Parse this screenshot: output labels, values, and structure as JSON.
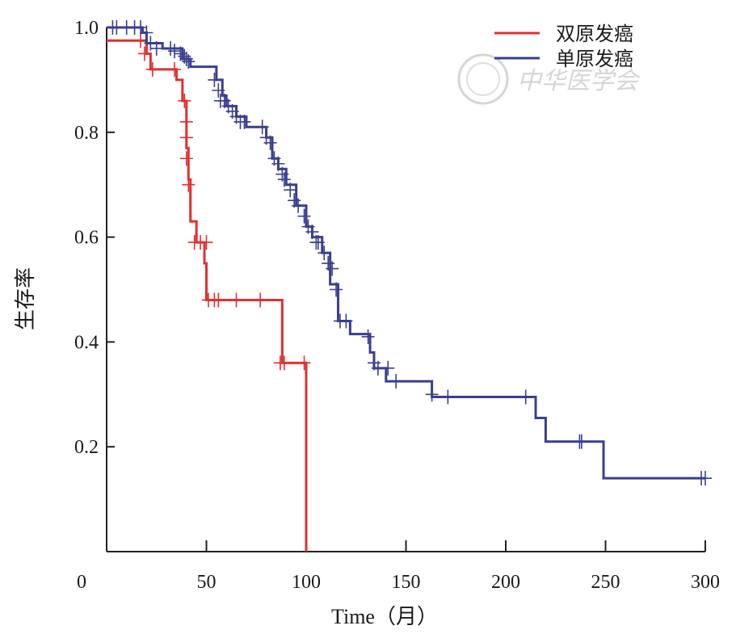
{
  "chart_data": {
    "type": "line",
    "subtype": "kaplan-meier",
    "xlabel": "Time（月）",
    "ylabel": "生存率",
    "xlim": [
      0,
      300
    ],
    "ylim": [
      0,
      1.0
    ],
    "x_origin_label": "0",
    "x_ticks": [
      50,
      100,
      150,
      200,
      250,
      300
    ],
    "y_ticks": [
      0.2,
      0.4,
      0.6,
      0.8,
      1.0
    ],
    "y_tick_labels": [
      "0.2",
      "0.4",
      "0.6",
      "0.8",
      "1.0"
    ],
    "legend_position": "top-right",
    "watermark": "中华医学会",
    "series": [
      {
        "name": "双原发癌",
        "color": "#e03030",
        "steps": [
          [
            0,
            0.975
          ],
          [
            20,
            0.95
          ],
          [
            22,
            0.92
          ],
          [
            35,
            0.9
          ],
          [
            38,
            0.86
          ],
          [
            40,
            0.77
          ],
          [
            41,
            0.71
          ],
          [
            42,
            0.63
          ],
          [
            45,
            0.59
          ],
          [
            49,
            0.55
          ],
          [
            50,
            0.48
          ],
          [
            88,
            0.36
          ],
          [
            100,
            0.0
          ]
        ],
        "end_x": 100,
        "censored": [
          [
            17,
            0.975
          ],
          [
            19,
            0.95
          ],
          [
            23,
            0.92
          ],
          [
            34,
            0.92
          ],
          [
            39,
            0.86
          ],
          [
            40,
            0.82
          ],
          [
            40,
            0.79
          ],
          [
            40,
            0.75
          ],
          [
            41,
            0.7
          ],
          [
            44,
            0.59
          ],
          [
            47,
            0.59
          ],
          [
            50,
            0.59
          ],
          [
            51,
            0.48
          ],
          [
            54,
            0.48
          ],
          [
            56,
            0.48
          ],
          [
            65,
            0.48
          ],
          [
            77,
            0.48
          ],
          [
            87,
            0.36
          ],
          [
            89,
            0.36
          ],
          [
            99,
            0.36
          ]
        ]
      },
      {
        "name": "单原发癌",
        "color": "#3a3f8f",
        "steps": [
          [
            0,
            1.0
          ],
          [
            18,
            0.99
          ],
          [
            20,
            0.97
          ],
          [
            28,
            0.96
          ],
          [
            38,
            0.94
          ],
          [
            42,
            0.925
          ],
          [
            55,
            0.9
          ],
          [
            58,
            0.87
          ],
          [
            60,
            0.85
          ],
          [
            65,
            0.83
          ],
          [
            70,
            0.81
          ],
          [
            80,
            0.79
          ],
          [
            83,
            0.75
          ],
          [
            86,
            0.73
          ],
          [
            90,
            0.7
          ],
          [
            95,
            0.66
          ],
          [
            100,
            0.62
          ],
          [
            103,
            0.6
          ],
          [
            108,
            0.57
          ],
          [
            112,
            0.51
          ],
          [
            116,
            0.44
          ],
          [
            122,
            0.415
          ],
          [
            132,
            0.38
          ],
          [
            134,
            0.35
          ],
          [
            140,
            0.325
          ],
          [
            163,
            0.295
          ],
          [
            215,
            0.255
          ],
          [
            220,
            0.21
          ],
          [
            249,
            0.14
          ]
        ],
        "end_x": 300,
        "censored": [
          [
            3,
            1.0
          ],
          [
            5,
            1.0
          ],
          [
            10,
            1.0
          ],
          [
            14,
            1.0
          ],
          [
            17,
            1.0
          ],
          [
            20,
            0.99
          ],
          [
            22,
            0.97
          ],
          [
            25,
            0.96
          ],
          [
            32,
            0.96
          ],
          [
            34,
            0.955
          ],
          [
            37,
            0.95
          ],
          [
            39,
            0.945
          ],
          [
            40,
            0.94
          ],
          [
            41,
            0.935
          ],
          [
            54,
            0.9
          ],
          [
            56,
            0.88
          ],
          [
            57,
            0.86
          ],
          [
            59,
            0.86
          ],
          [
            61,
            0.85
          ],
          [
            63,
            0.84
          ],
          [
            65,
            0.83
          ],
          [
            67,
            0.82
          ],
          [
            69,
            0.82
          ],
          [
            78,
            0.81
          ],
          [
            80,
            0.79
          ],
          [
            82,
            0.78
          ],
          [
            84,
            0.75
          ],
          [
            86,
            0.74
          ],
          [
            88,
            0.72
          ],
          [
            89,
            0.71
          ],
          [
            92,
            0.69
          ],
          [
            94,
            0.67
          ],
          [
            96,
            0.66
          ],
          [
            99,
            0.64
          ],
          [
            101,
            0.62
          ],
          [
            103,
            0.61
          ],
          [
            105,
            0.59
          ],
          [
            106,
            0.59
          ],
          [
            109,
            0.57
          ],
          [
            111,
            0.55
          ],
          [
            113,
            0.54
          ],
          [
            115,
            0.5
          ],
          [
            117,
            0.44
          ],
          [
            120,
            0.44
          ],
          [
            131,
            0.41
          ],
          [
            134,
            0.36
          ],
          [
            136,
            0.35
          ],
          [
            141,
            0.35
          ],
          [
            145,
            0.325
          ],
          [
            163,
            0.3
          ],
          [
            171,
            0.295
          ],
          [
            210,
            0.295
          ],
          [
            237,
            0.21
          ],
          [
            238,
            0.21
          ],
          [
            298,
            0.14
          ],
          [
            300,
            0.14
          ]
        ]
      }
    ]
  }
}
